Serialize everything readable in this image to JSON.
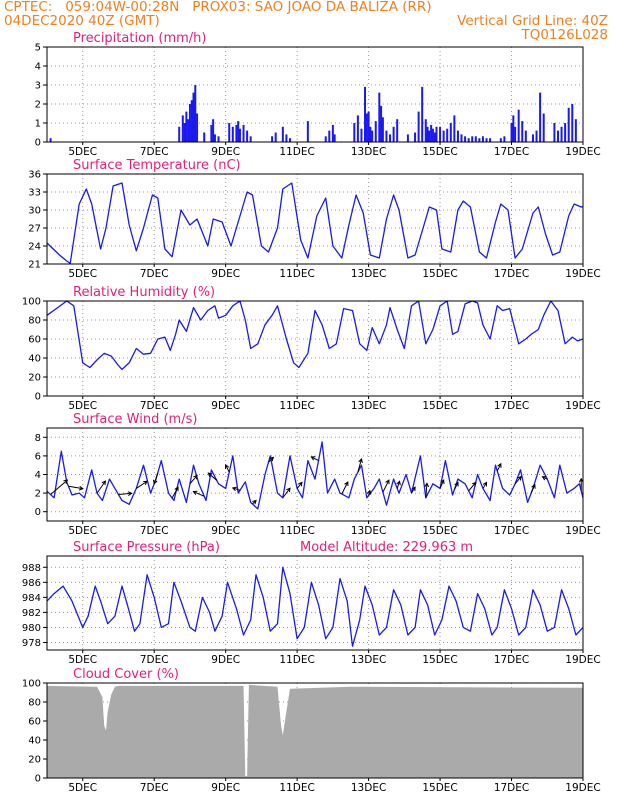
{
  "header": {
    "line1_left": "CPTEC:   059:04W-00:28N   PROX03: SAO JOAO DA BALIZA (RR)",
    "line2_left": "04DEC2020 40Z (GMT)",
    "line2_right": "Vertical Grid Line: 40Z",
    "line3_right": "TQ0126L028"
  },
  "colors": {
    "header": "#f08020",
    "title": "#e0207f",
    "series": "#1a1aee",
    "cloud": "#aaaaaa"
  },
  "chart_data": [
    {
      "id": "precip",
      "type": "bar",
      "title": "Precipitation (mm/h)",
      "ylim": [
        0,
        5
      ],
      "yticks": [
        0,
        1,
        2,
        3,
        4,
        5
      ],
      "xlim": [
        4.0,
        19.0
      ],
      "xticks": [
        "5DEC",
        "7DEC",
        "9DEC",
        "11DEC",
        "13DEC",
        "15DEC",
        "17DEC",
        "19DEC"
      ],
      "xtick_pos": [
        5,
        7,
        9,
        11,
        13,
        15,
        17,
        19
      ],
      "x": [
        4.1,
        7.7,
        7.8,
        7.85,
        7.9,
        7.95,
        8.0,
        8.05,
        8.1,
        8.15,
        8.2,
        8.4,
        8.6,
        8.65,
        8.7,
        8.8,
        9.1,
        9.2,
        9.3,
        9.35,
        9.4,
        9.5,
        9.6,
        9.7,
        10.3,
        10.4,
        10.6,
        10.7,
        10.8,
        11.3,
        11.8,
        11.9,
        12.0,
        12.05,
        12.6,
        12.7,
        12.8,
        12.9,
        12.95,
        13.0,
        13.05,
        13.1,
        13.2,
        13.3,
        13.35,
        13.4,
        13.5,
        13.6,
        13.7,
        13.8,
        14.1,
        14.3,
        14.4,
        14.5,
        14.6,
        14.65,
        14.7,
        14.75,
        14.8,
        14.85,
        14.9,
        15.0,
        15.1,
        15.2,
        15.3,
        15.4,
        15.5,
        15.6,
        15.7,
        15.8,
        15.9,
        16.0,
        16.1,
        16.2,
        16.3,
        16.4,
        16.7,
        16.8,
        17.0,
        17.05,
        17.1,
        17.2,
        17.3,
        17.4,
        17.6,
        17.7,
        17.8,
        17.9,
        18.2,
        18.3,
        18.4,
        18.5,
        18.6,
        18.7,
        18.8
      ],
      "values": [
        0.2,
        0.8,
        1.4,
        1.0,
        1.6,
        1.2,
        2.0,
        2.2,
        2.6,
        3.0,
        1.5,
        0.5,
        0.9,
        1.2,
        0.4,
        0.3,
        1.0,
        0.8,
        0.9,
        1.1,
        0.7,
        0.9,
        0.6,
        0.3,
        0.3,
        0.5,
        0.8,
        0.4,
        0.2,
        1.1,
        0.3,
        0.6,
        0.9,
        0.4,
        1.0,
        1.4,
        0.7,
        2.9,
        1.5,
        1.6,
        0.8,
        0.6,
        1.1,
        2.6,
        1.9,
        1.3,
        0.6,
        0.4,
        0.8,
        1.2,
        0.4,
        0.5,
        1.6,
        2.9,
        1.2,
        0.8,
        0.6,
        0.9,
        0.7,
        0.5,
        0.8,
        0.8,
        0.6,
        0.7,
        1.0,
        1.4,
        0.6,
        0.4,
        0.3,
        0.2,
        0.3,
        0.3,
        0.2,
        0.3,
        0.2,
        0.2,
        0.2,
        0.3,
        1.0,
        1.4,
        0.8,
        1.7,
        1.1,
        0.6,
        0.4,
        0.6,
        2.6,
        1.5,
        1.0,
        0.6,
        0.8,
        1.0,
        1.8,
        2.0,
        1.2
      ]
    },
    {
      "id": "temp",
      "type": "line",
      "title": "Surface Temperature (nC)",
      "ylim": [
        21,
        36
      ],
      "yticks": [
        21,
        24,
        27,
        30,
        33,
        36
      ],
      "xlim": [
        4.0,
        19.0
      ],
      "xticks": [
        "5DEC",
        "7DEC",
        "9DEC",
        "11DEC",
        "13DEC",
        "15DEC",
        "17DEC",
        "19DEC"
      ],
      "xtick_pos": [
        5,
        7,
        9,
        11,
        13,
        15,
        17,
        19
      ],
      "x": [
        4.0,
        4.35,
        4.55,
        4.65,
        4.9,
        5.1,
        5.25,
        5.5,
        5.65,
        5.85,
        6.1,
        6.3,
        6.5,
        6.7,
        6.95,
        7.1,
        7.3,
        7.5,
        7.75,
        8.0,
        8.2,
        8.5,
        8.65,
        8.9,
        9.15,
        9.3,
        9.6,
        9.75,
        10.0,
        10.2,
        10.45,
        10.6,
        10.85,
        11.1,
        11.3,
        11.55,
        11.8,
        12.0,
        12.25,
        12.45,
        12.65,
        12.85,
        13.05,
        13.3,
        13.5,
        13.7,
        13.85,
        14.1,
        14.3,
        14.5,
        14.7,
        14.9,
        15.05,
        15.3,
        15.5,
        15.65,
        15.85,
        16.1,
        16.3,
        16.55,
        16.7,
        16.9,
        17.1,
        17.3,
        17.6,
        17.75,
        17.95,
        18.15,
        18.35,
        18.6,
        18.75,
        18.95,
        19.0
      ],
      "values": [
        24.5,
        22.5,
        21.5,
        21.1,
        31.0,
        33.5,
        31.0,
        23.5,
        27.0,
        34.0,
        34.5,
        27.5,
        23.2,
        27.0,
        32.5,
        32.0,
        23.5,
        22.2,
        30.0,
        27.5,
        28.5,
        24.0,
        28.5,
        28.0,
        24.0,
        27.0,
        33.0,
        32.5,
        24.0,
        23.0,
        27.0,
        33.5,
        34.5,
        25.0,
        22.0,
        29.0,
        32.0,
        24.0,
        22.0,
        27.5,
        32.5,
        29.5,
        22.5,
        22.0,
        28.5,
        32.5,
        30.0,
        22.0,
        22.5,
        26.5,
        30.5,
        30.0,
        23.5,
        23.0,
        30.0,
        31.5,
        30.5,
        23.0,
        22.0,
        28.0,
        31.0,
        30.0,
        22.0,
        23.5,
        29.5,
        30.5,
        26.0,
        22.5,
        23.0,
        29.0,
        31.0,
        30.5,
        30.6
      ]
    },
    {
      "id": "rh",
      "type": "line",
      "title": "Relative Humidity (%)",
      "ylim": [
        0,
        100
      ],
      "yticks": [
        0,
        20,
        40,
        60,
        80,
        100
      ],
      "xlim": [
        4.0,
        19.0
      ],
      "xticks": [
        "5DEC",
        "7DEC",
        "9DEC",
        "11DEC",
        "13DEC",
        "15DEC",
        "17DEC",
        "19DEC"
      ],
      "xtick_pos": [
        5,
        7,
        9,
        11,
        13,
        15,
        17,
        19
      ],
      "x": [
        4.0,
        4.3,
        4.55,
        4.75,
        5.0,
        5.2,
        5.4,
        5.6,
        5.8,
        6.0,
        6.1,
        6.3,
        6.5,
        6.7,
        6.9,
        7.1,
        7.3,
        7.45,
        7.6,
        7.7,
        7.9,
        8.1,
        8.3,
        8.5,
        8.7,
        8.8,
        9.0,
        9.2,
        9.4,
        9.55,
        9.7,
        9.9,
        10.1,
        10.3,
        10.45,
        10.7,
        10.9,
        11.05,
        11.3,
        11.5,
        11.7,
        11.9,
        12.1,
        12.3,
        12.55,
        12.75,
        12.95,
        13.1,
        13.3,
        13.5,
        13.6,
        13.8,
        14.0,
        14.2,
        14.4,
        14.6,
        14.8,
        15.0,
        15.2,
        15.35,
        15.5,
        15.7,
        15.9,
        16.05,
        16.2,
        16.4,
        16.6,
        16.75,
        16.95,
        17.2,
        17.4,
        17.55,
        17.75,
        17.9,
        18.1,
        18.3,
        18.5,
        18.7,
        18.85,
        19.0
      ],
      "values": [
        85,
        93,
        100,
        95,
        35,
        30,
        38,
        45,
        42,
        32,
        28,
        35,
        50,
        44,
        45,
        60,
        62,
        48,
        65,
        80,
        68,
        93,
        80,
        90,
        95,
        82,
        85,
        95,
        100,
        80,
        50,
        55,
        75,
        85,
        95,
        60,
        35,
        30,
        45,
        90,
        75,
        50,
        55,
        92,
        90,
        55,
        48,
        72,
        55,
        75,
        93,
        70,
        50,
        95,
        100,
        55,
        70,
        95,
        100,
        65,
        68,
        97,
        100,
        98,
        75,
        60,
        95,
        90,
        92,
        55,
        60,
        65,
        70,
        85,
        100,
        90,
        55,
        62,
        58,
        60
      ]
    },
    {
      "id": "wind",
      "type": "line",
      "title": "Surface Wind (m/s)",
      "ylim": [
        -1,
        9
      ],
      "yticks": [
        0,
        2,
        4,
        6,
        8
      ],
      "xlim": [
        4.0,
        19.0
      ],
      "xticks": [
        "5DEC",
        "7DEC",
        "9DEC",
        "11DEC",
        "13DEC",
        "15DEC",
        "17DEC",
        "19DEC"
      ],
      "xtick_pos": [
        5,
        7,
        9,
        11,
        13,
        15,
        17,
        19
      ],
      "x": [
        4.0,
        4.2,
        4.4,
        4.55,
        4.7,
        4.9,
        5.05,
        5.25,
        5.4,
        5.55,
        5.75,
        5.9,
        6.1,
        6.3,
        6.5,
        6.7,
        6.9,
        7.05,
        7.2,
        7.4,
        7.55,
        7.7,
        7.9,
        8.1,
        8.25,
        8.45,
        8.6,
        8.8,
        9.0,
        9.2,
        9.35,
        9.55,
        9.7,
        9.9,
        10.1,
        10.25,
        10.45,
        10.6,
        10.8,
        11.0,
        11.15,
        11.3,
        11.5,
        11.7,
        11.85,
        12.05,
        12.2,
        12.45,
        12.6,
        12.8,
        12.95,
        13.15,
        13.3,
        13.5,
        13.7,
        13.85,
        14.05,
        14.2,
        14.45,
        14.6,
        14.8,
        15.0,
        15.15,
        15.35,
        15.5,
        15.7,
        15.9,
        16.05,
        16.2,
        16.4,
        16.55,
        16.75,
        16.95,
        17.1,
        17.25,
        17.45,
        17.6,
        17.8,
        18.0,
        18.2,
        18.35,
        18.55,
        18.75,
        18.9,
        19.0
      ],
      "values": [
        2.2,
        1.5,
        6.5,
        3.2,
        1.8,
        2.0,
        1.5,
        4.5,
        2.0,
        1.2,
        3.5,
        2.5,
        1.2,
        0.8,
        2.5,
        5.0,
        2.0,
        3.5,
        5.5,
        2.0,
        1.2,
        3.5,
        1.0,
        5.0,
        3.0,
        1.2,
        4.5,
        3.0,
        2.5,
        6.0,
        2.0,
        3.2,
        1.0,
        0.3,
        4.0,
        6.0,
        2.0,
        1.5,
        6.0,
        2.5,
        1.5,
        5.5,
        3.5,
        7.5,
        2.0,
        3.5,
        2.0,
        1.5,
        3.5,
        5.0,
        1.5,
        2.5,
        3.5,
        0.7,
        3.5,
        2.0,
        4.0,
        2.0,
        6.0,
        1.5,
        3.0,
        2.5,
        5.5,
        1.8,
        3.5,
        3.0,
        1.5,
        4.0,
        2.5,
        1.2,
        5.0,
        2.5,
        1.8,
        3.0,
        4.5,
        1.0,
        2.5,
        5.0,
        3.5,
        1.5,
        5.0,
        2.0,
        2.5,
        3.0,
        1.5
      ],
      "vectors": [
        {
          "x": 4.1,
          "u": 1.4,
          "v": 1.2
        },
        {
          "x": 4.6,
          "u": 1.2,
          "v": -0.2
        },
        {
          "x": 5.4,
          "u": 0.7,
          "v": 1.0
        },
        {
          "x": 6.0,
          "u": 1.1,
          "v": 0.1
        },
        {
          "x": 6.5,
          "u": 0.9,
          "v": 0.6
        },
        {
          "x": 7.1,
          "u": -0.3,
          "v": -0.9
        },
        {
          "x": 7.5,
          "u": 0.5,
          "v": 0.9
        },
        {
          "x": 8.0,
          "u": 0.6,
          "v": 0.7
        },
        {
          "x": 8.4,
          "u": -0.9,
          "v": 0.4
        },
        {
          "x": 8.75,
          "u": -0.7,
          "v": 0.6
        },
        {
          "x": 9.1,
          "u": -0.3,
          "v": 0.6
        },
        {
          "x": 9.4,
          "u": -0.6,
          "v": 0.2
        },
        {
          "x": 9.75,
          "u": 0.3,
          "v": 0.3
        },
        {
          "x": 10.2,
          "u": 0.4,
          "v": 0.4
        },
        {
          "x": 10.6,
          "u": 0.6,
          "v": 0.8
        },
        {
          "x": 11.0,
          "u": 0.4,
          "v": 0.5
        },
        {
          "x": 11.6,
          "u": -0.6,
          "v": 0.3
        },
        {
          "x": 12.25,
          "u": 0.5,
          "v": 1.0
        },
        {
          "x": 12.7,
          "u": 0.3,
          "v": 1.1
        },
        {
          "x": 13.0,
          "u": 0.1,
          "v": 0.4
        },
        {
          "x": 13.4,
          "u": 0.5,
          "v": 1.0
        },
        {
          "x": 13.8,
          "u": 0.2,
          "v": 0.6
        },
        {
          "x": 14.2,
          "u": 0.3,
          "v": 0.5
        },
        {
          "x": 14.6,
          "u": 0.1,
          "v": 1.2
        },
        {
          "x": 15.0,
          "u": 0.3,
          "v": 0.7
        },
        {
          "x": 15.4,
          "u": 0.3,
          "v": 0.6
        },
        {
          "x": 15.8,
          "u": 0.6,
          "v": 0.7
        },
        {
          "x": 16.2,
          "u": 0.3,
          "v": 0.5
        },
        {
          "x": 16.6,
          "u": 0.3,
          "v": 0.6
        },
        {
          "x": 17.1,
          "u": 0.5,
          "v": 0.6
        },
        {
          "x": 17.55,
          "u": 0.3,
          "v": 0.7
        },
        {
          "x": 18.0,
          "u": -0.4,
          "v": 0.2
        },
        {
          "x": 18.95,
          "u": 0.0,
          "v": 1.0
        }
      ]
    },
    {
      "id": "pres",
      "type": "line",
      "title": "Surface Pressure (hPa)",
      "annotation": "Model Altitude: 229.963 m",
      "ylim": [
        977,
        989.5
      ],
      "yticks": [
        978,
        980,
        982,
        984,
        986,
        988
      ],
      "xlim": [
        4.0,
        19.0
      ],
      "xticks": [
        "5DEC",
        "7DEC",
        "9DEC",
        "11DEC",
        "13DEC",
        "15DEC",
        "17DEC",
        "19DEC"
      ],
      "xtick_pos": [
        5,
        7,
        9,
        11,
        13,
        15,
        17,
        19
      ],
      "x": [
        4.0,
        4.2,
        4.45,
        4.7,
        5.0,
        5.15,
        5.35,
        5.5,
        5.7,
        5.9,
        6.1,
        6.25,
        6.45,
        6.6,
        6.8,
        7.0,
        7.2,
        7.4,
        7.55,
        7.75,
        8.0,
        8.15,
        8.35,
        8.55,
        8.7,
        8.9,
        9.05,
        9.3,
        9.5,
        9.7,
        9.85,
        10.05,
        10.25,
        10.45,
        10.6,
        10.8,
        11.0,
        11.2,
        11.4,
        11.6,
        11.8,
        12.0,
        12.2,
        12.4,
        12.55,
        12.75,
        12.9,
        13.1,
        13.3,
        13.5,
        13.7,
        13.9,
        14.1,
        14.3,
        14.45,
        14.65,
        14.85,
        15.05,
        15.25,
        15.45,
        15.65,
        15.85,
        16.05,
        16.25,
        16.45,
        16.6,
        16.8,
        17.0,
        17.2,
        17.4,
        17.6,
        17.8,
        18.0,
        18.2,
        18.4,
        18.6,
        18.8,
        19.0
      ],
      "values": [
        983.5,
        984.5,
        985.5,
        983.5,
        980.0,
        981.5,
        985.5,
        983.5,
        980.5,
        981.5,
        985.5,
        983.0,
        979.5,
        980.5,
        987.0,
        984.0,
        980.0,
        980.5,
        986.0,
        983.5,
        980.0,
        979.5,
        984.0,
        982.0,
        979.5,
        981.5,
        986.0,
        982.5,
        979.0,
        981.0,
        987.0,
        984.0,
        979.5,
        980.5,
        988.0,
        984.5,
        978.5,
        980.0,
        986.0,
        983.0,
        978.5,
        980.0,
        986.5,
        983.5,
        977.5,
        981.0,
        985.5,
        983.0,
        979.0,
        980.0,
        985.0,
        983.0,
        979.0,
        980.0,
        985.0,
        983.0,
        979.0,
        981.0,
        985.5,
        983.5,
        980.0,
        979.5,
        984.5,
        982.5,
        979.0,
        980.0,
        985.0,
        982.5,
        979.0,
        980.0,
        985.0,
        983.0,
        979.5,
        980.0,
        985.0,
        982.5,
        979.0,
        980.0
      ]
    },
    {
      "id": "cloud",
      "type": "area",
      "title": "Cloud Cover (%)",
      "ylim": [
        0,
        100
      ],
      "yticks": [
        0,
        20,
        40,
        60,
        80,
        100
      ],
      "xlim": [
        4.0,
        19.0
      ],
      "xticks": [
        "5DEC",
        "7DEC",
        "9DEC",
        "11DEC",
        "13DEC",
        "15DEC",
        "17DEC",
        "19DEC"
      ],
      "xtick_pos": [
        5,
        7,
        9,
        11,
        13,
        15,
        17,
        19
      ],
      "x": [
        4.0,
        5.4,
        5.55,
        5.6,
        5.65,
        5.7,
        5.8,
        5.9,
        6.0,
        9.5,
        9.55,
        9.6,
        9.65,
        10.45,
        10.55,
        10.6,
        10.7,
        10.8,
        12.5,
        19.0
      ],
      "values": [
        97,
        96,
        85,
        55,
        50,
        70,
        88,
        96,
        97,
        97,
        2,
        2,
        98,
        96,
        55,
        45,
        70,
        94,
        96,
        95
      ]
    }
  ]
}
